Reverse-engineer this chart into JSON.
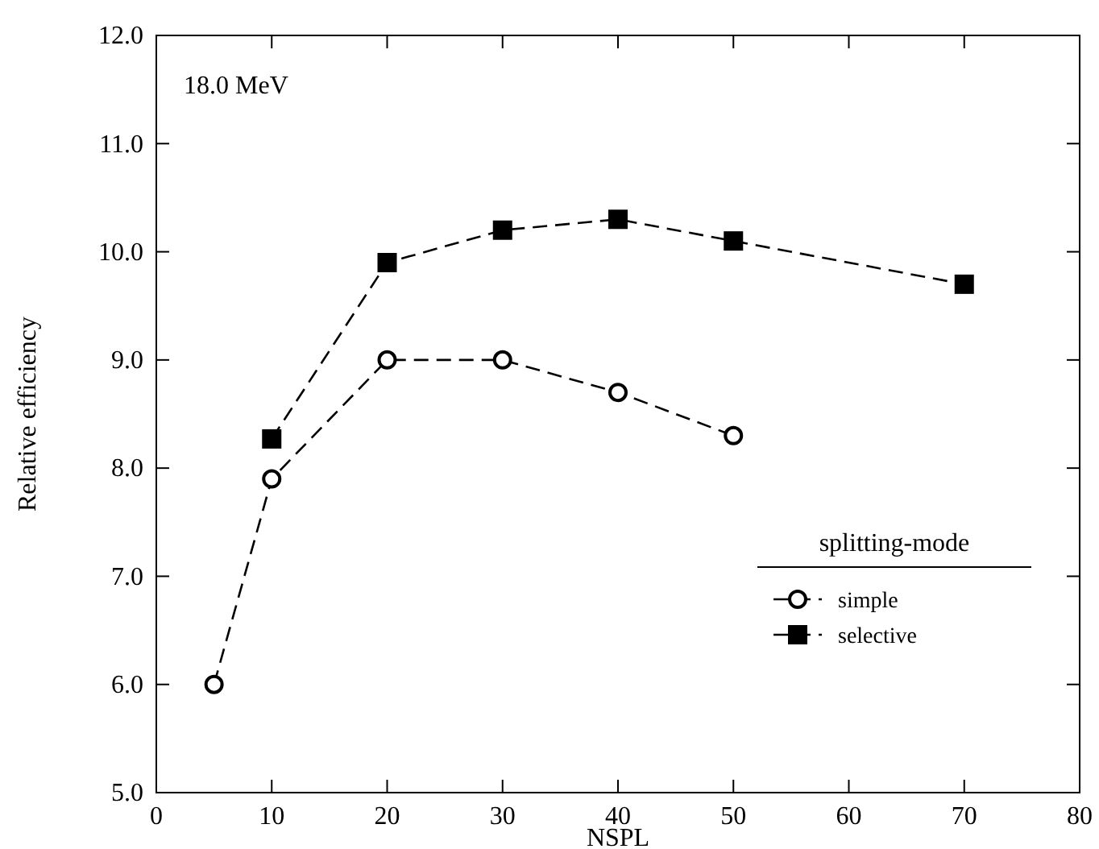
{
  "chart_data": {
    "type": "line",
    "xlabel": "NSPL",
    "ylabel": "Relative efficiency",
    "annotations": [
      "18.0 MeV"
    ],
    "legend_title": "splitting-mode",
    "legend": "bottom right",
    "line_style": "dashed",
    "grid": false,
    "xlim": [
      0,
      80
    ],
    "xticks": [
      0,
      10,
      20,
      30,
      40,
      50,
      60,
      70,
      80
    ],
    "ylim": [
      5,
      12
    ],
    "yticks": [
      {
        "value": 5,
        "label": "5.0"
      },
      {
        "value": 6,
        "label": "6.0"
      },
      {
        "value": 7,
        "label": "7.0"
      },
      {
        "value": 8,
        "label": "8.0"
      },
      {
        "value": 9,
        "label": "9.0"
      },
      {
        "value": 10,
        "label": "10.0"
      },
      {
        "value": 11,
        "label": "11.0"
      },
      {
        "value": 12,
        "label": "12.0"
      }
    ],
    "series": [
      {
        "name": "simple",
        "color": "#000000",
        "marker": "circle",
        "x": [
          5,
          10,
          20,
          30,
          40,
          50
        ],
        "values": [
          6.0,
          7.9,
          9.0,
          9.0,
          8.7,
          8.3
        ]
      },
      {
        "name": "selective",
        "color": "#000000",
        "marker": "square",
        "x": [
          10,
          20,
          30,
          40,
          50,
          70
        ],
        "values": [
          8.27,
          9.9,
          10.2,
          10.3,
          10.1,
          9.7
        ]
      }
    ]
  }
}
